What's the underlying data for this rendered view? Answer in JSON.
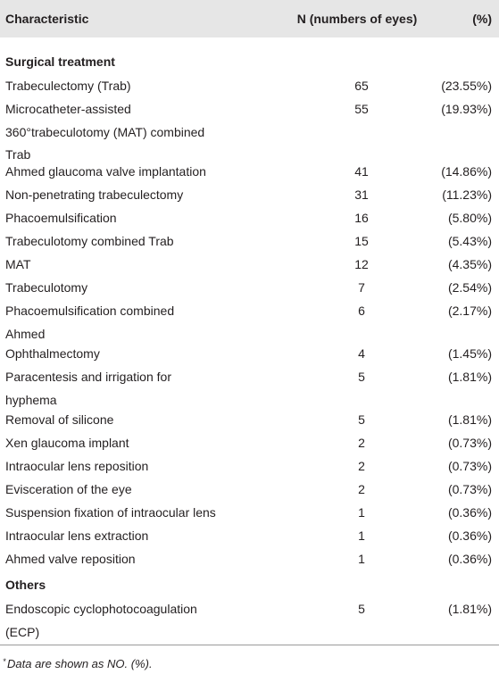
{
  "table": {
    "header": [
      "Characteristic",
      "N (numbers of eyes)",
      "(%)"
    ],
    "sections": [
      {
        "title": "Surgical treatment",
        "rows": [
          {
            "characteristic": [
              "Trabeculectomy (Trab)"
            ],
            "n": 65,
            "percent": "(23.55%)"
          },
          {
            "characteristic": [
              "Microcatheter-assisted",
              "360°trabeculotomy (MAT) combined",
              "Trab"
            ],
            "n": 55,
            "percent": "(19.93%)"
          },
          {
            "characteristic": [
              "Ahmed glaucoma valve implantation"
            ],
            "n": 41,
            "percent": "(14.86%)"
          },
          {
            "characteristic": [
              "Non-penetrating trabeculectomy"
            ],
            "n": 31,
            "percent": "(11.23%)"
          },
          {
            "characteristic": [
              "Phacoemulsification"
            ],
            "n": 16,
            "percent": "(5.80%)"
          },
          {
            "characteristic": [
              "Trabeculotomy combined Trab"
            ],
            "n": 15,
            "percent": "(5.43%)"
          },
          {
            "characteristic": [
              "MAT"
            ],
            "n": 12,
            "percent": "(4.35%)"
          },
          {
            "characteristic": [
              "Trabeculotomy"
            ],
            "n": 7,
            "percent": "(2.54%)"
          },
          {
            "characteristic": [
              "Phacoemulsification combined",
              "Ahmed"
            ],
            "n": 6,
            "percent": "(2.17%)"
          },
          {
            "characteristic": [
              "Ophthalmectomy"
            ],
            "n": 4,
            "percent": "(1.45%)"
          },
          {
            "characteristic": [
              "Paracentesis and irrigation for",
              "hyphema"
            ],
            "n": 5,
            "percent": "(1.81%)"
          },
          {
            "characteristic": [
              "Removal of silicone"
            ],
            "n": 5,
            "percent": "(1.81%)"
          },
          {
            "characteristic": [
              "Xen glaucoma implant"
            ],
            "n": 2,
            "percent": "(0.73%)"
          },
          {
            "characteristic": [
              "Intraocular lens reposition"
            ],
            "n": 2,
            "percent": "(0.73%)"
          },
          {
            "characteristic": [
              "Evisceration of the eye"
            ],
            "n": 2,
            "percent": "(0.73%)"
          },
          {
            "characteristic": [
              "Suspension fixation of intraocular lens"
            ],
            "n": 1,
            "percent": "(0.36%)"
          },
          {
            "characteristic": [
              "Intraocular lens extraction"
            ],
            "n": 1,
            "percent": "(0.36%)"
          },
          {
            "characteristic": [
              "Ahmed valve reposition"
            ],
            "n": 1,
            "percent": "(0.36%)"
          }
        ]
      },
      {
        "title": "Others",
        "rows": [
          {
            "characteristic": [
              "Endoscopic cyclophotocoagulation",
              "(ECP)"
            ],
            "n": 5,
            "percent": "(1.81%)"
          }
        ]
      }
    ],
    "footnote": {
      "marker": "*",
      "text": "Data are shown as NO. (%)."
    }
  }
}
